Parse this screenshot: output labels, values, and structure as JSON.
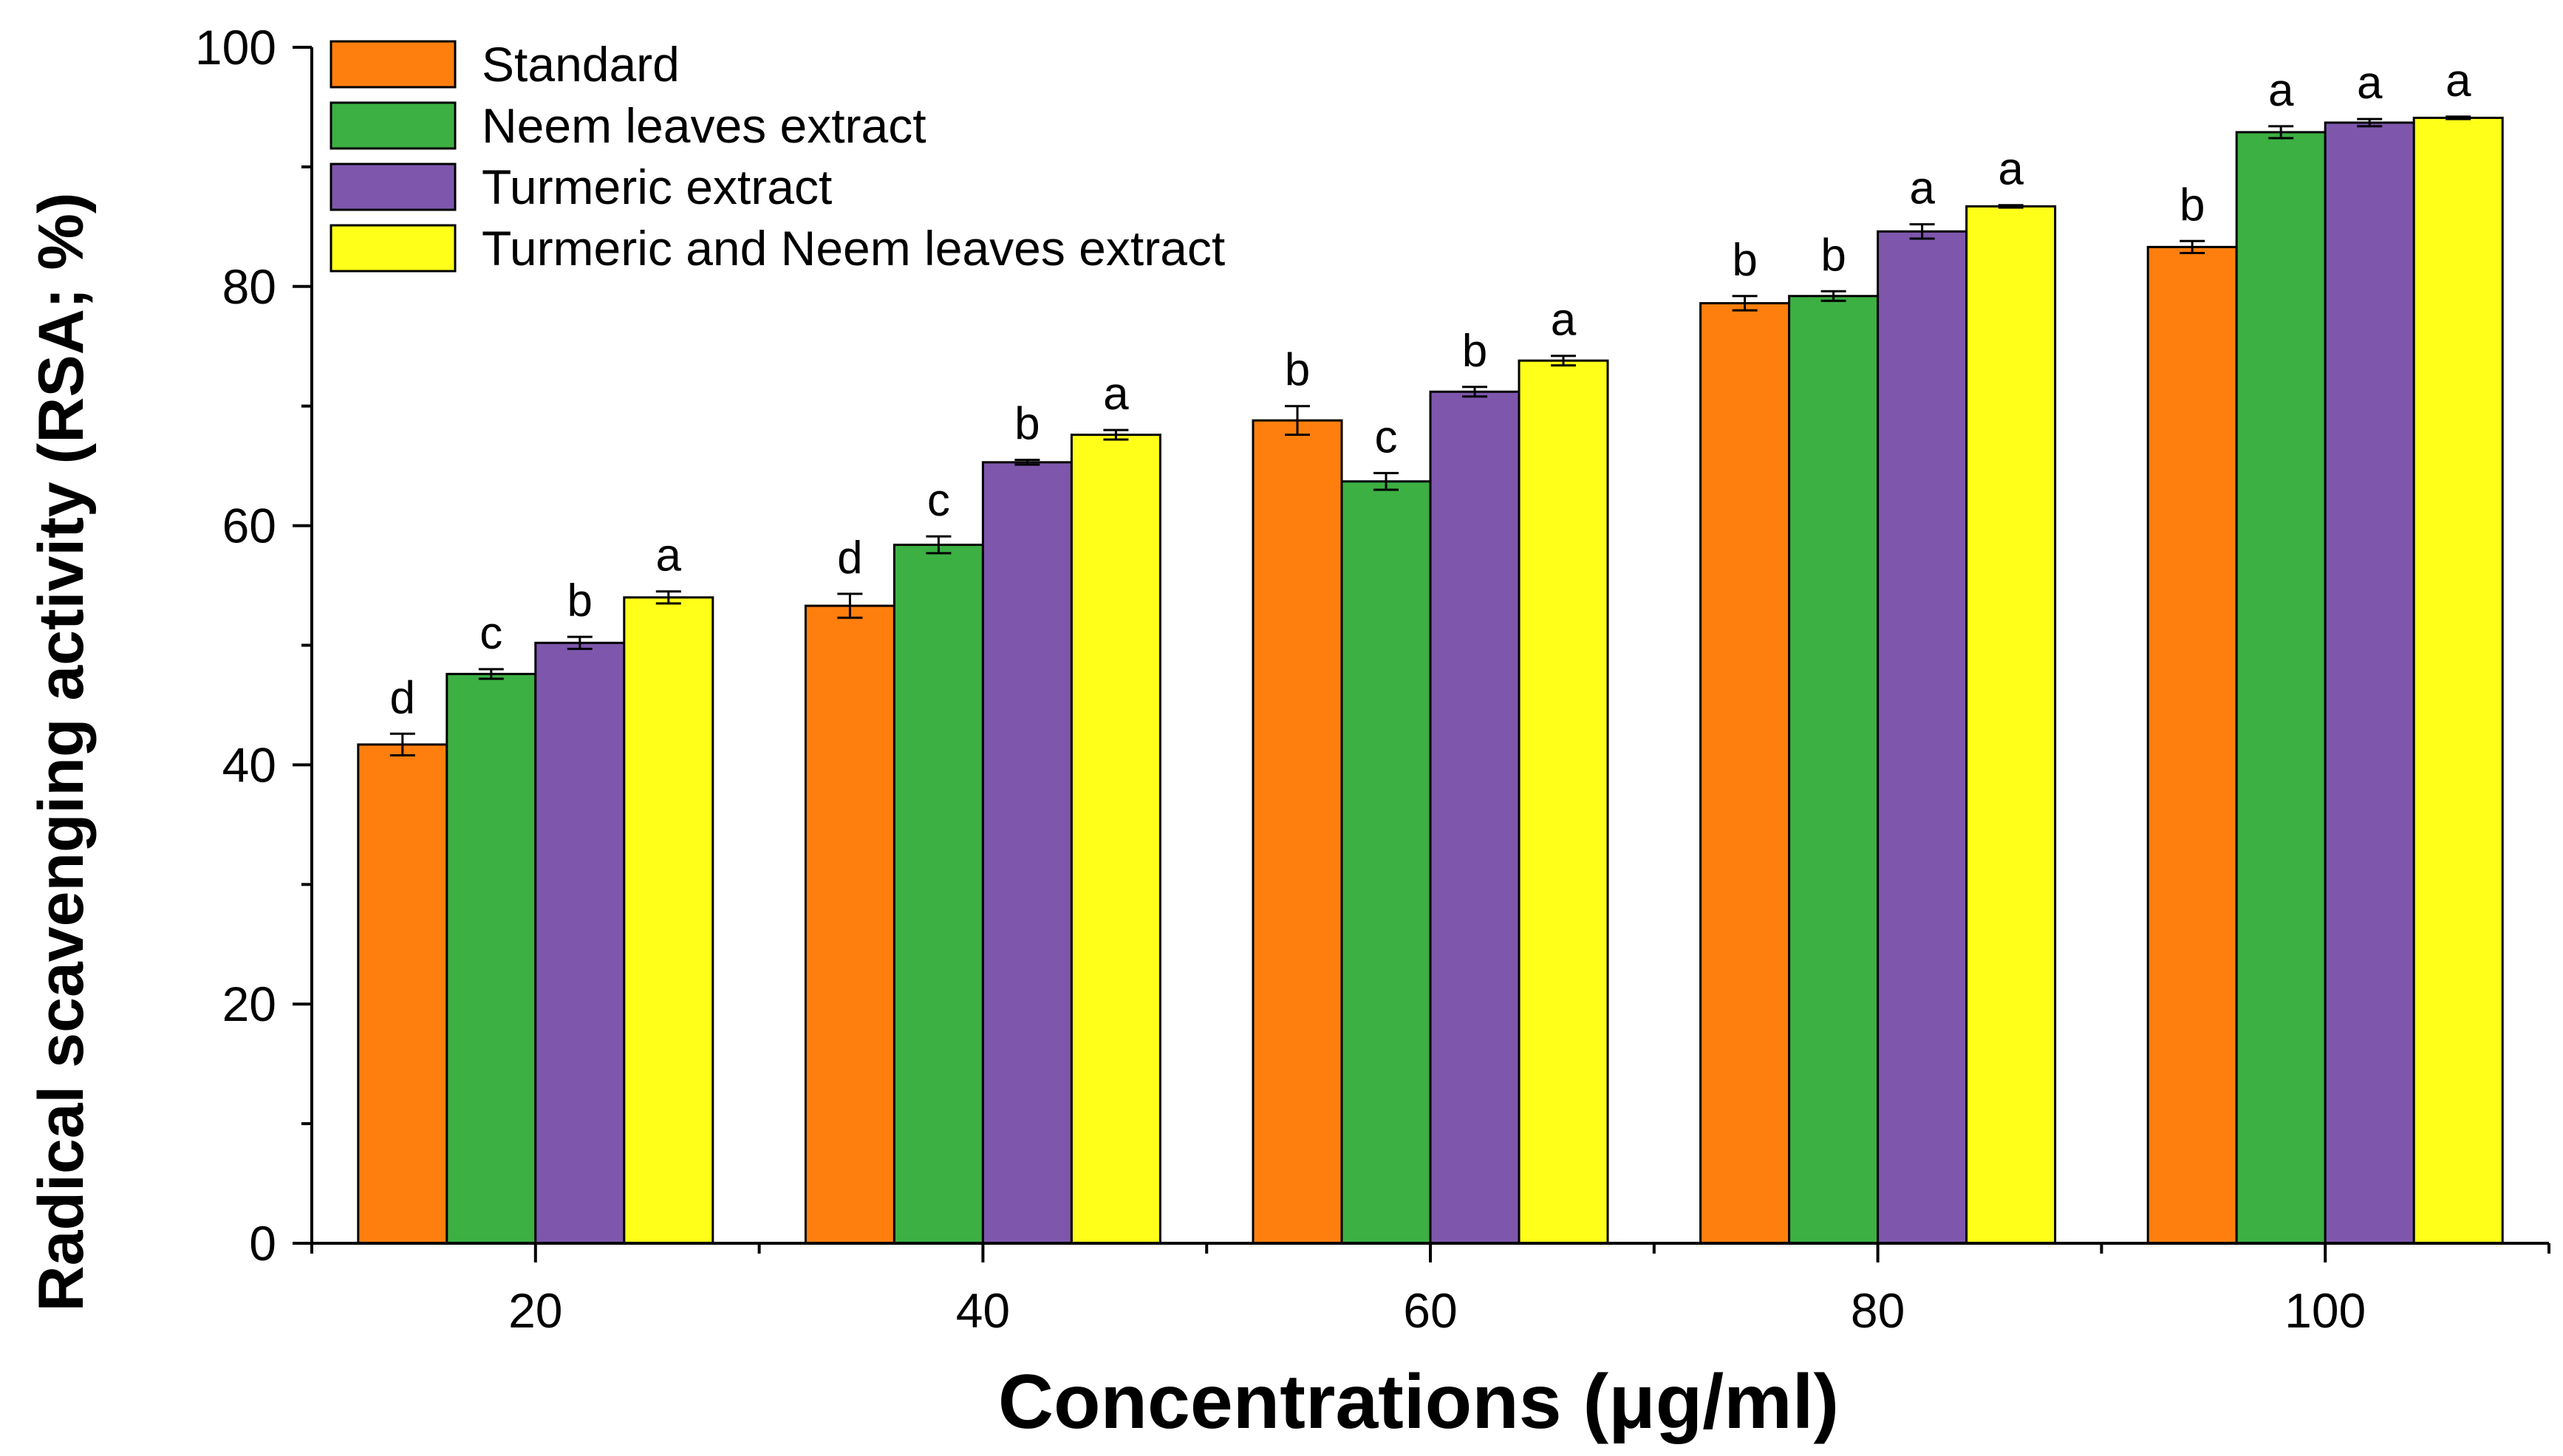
{
  "chart_data": {
    "type": "bar",
    "xlabel": "Concentrations (μg/ml)",
    "ylabel": "Radical scavenging activity (RSA; %)",
    "categories": [
      "20",
      "40",
      "60",
      "80",
      "100"
    ],
    "ylim": [
      0,
      100
    ],
    "yticks": [
      "0",
      "20",
      "40",
      "60",
      "80",
      "100"
    ],
    "legend_position": "top-left",
    "grid": false,
    "error_bars": true,
    "series": [
      {
        "name": "Standard",
        "color": "#FF7F0E",
        "values": [
          41.7,
          53.3,
          68.8,
          78.6,
          83.3
        ],
        "errors": [
          0.9,
          1.0,
          1.2,
          0.6,
          0.5
        ],
        "letters": [
          "d",
          "d",
          "b",
          "b",
          "b"
        ]
      },
      {
        "name": "Neem leaves extract",
        "color": "#3CB043",
        "values": [
          47.6,
          58.4,
          63.7,
          79.2,
          92.9
        ],
        "errors": [
          0.4,
          0.7,
          0.7,
          0.4,
          0.5
        ],
        "letters": [
          "c",
          "c",
          "c",
          "b",
          "a"
        ]
      },
      {
        "name": "Turmeric extract",
        "color": "#7E57AD",
        "values": [
          50.2,
          65.3,
          71.2,
          84.6,
          93.7
        ],
        "errors": [
          0.5,
          0.2,
          0.4,
          0.6,
          0.3
        ],
        "letters": [
          "b",
          "b",
          "b",
          "a",
          "a"
        ]
      },
      {
        "name": "Turmeric and Neem leaves  extract",
        "color": "#FFFF1A",
        "values": [
          54.0,
          67.6,
          73.8,
          86.7,
          94.1
        ],
        "errors": [
          0.5,
          0.4,
          0.4,
          0.1,
          0.1
        ],
        "letters": [
          "a",
          "a",
          "a",
          "a",
          "a"
        ]
      }
    ]
  }
}
